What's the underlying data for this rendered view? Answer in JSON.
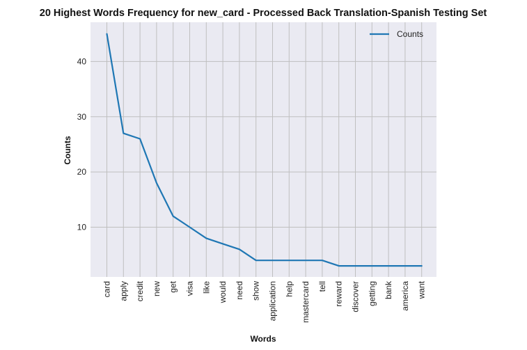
{
  "chart_data": {
    "type": "line",
    "title": "20 Highest Words Frequency for new_card - Processed Back Translation-Spanish Testing Set",
    "xlabel": "Words",
    "ylabel": "Counts",
    "categories": [
      "card",
      "apply",
      "credit",
      "new",
      "get",
      "visa",
      "like",
      "would",
      "need",
      "show",
      "application",
      "help",
      "mastercard",
      "tell",
      "reward",
      "discover",
      "getting",
      "bank",
      "america",
      "want"
    ],
    "series": [
      {
        "name": "Counts",
        "values": [
          45,
          27,
          26,
          18,
          12,
          10,
          8,
          7,
          6,
          4,
          4,
          4,
          4,
          4,
          3,
          3,
          3,
          3,
          3,
          3
        ]
      }
    ],
    "yticks": [
      10,
      20,
      30,
      40
    ],
    "ylim": [
      1.0,
      47.1
    ],
    "grid": true,
    "legend_position": "top-right",
    "colors": {
      "line": "#1f77b4",
      "background": "#eaeaf2",
      "grid": "#bfbfbf"
    }
  }
}
